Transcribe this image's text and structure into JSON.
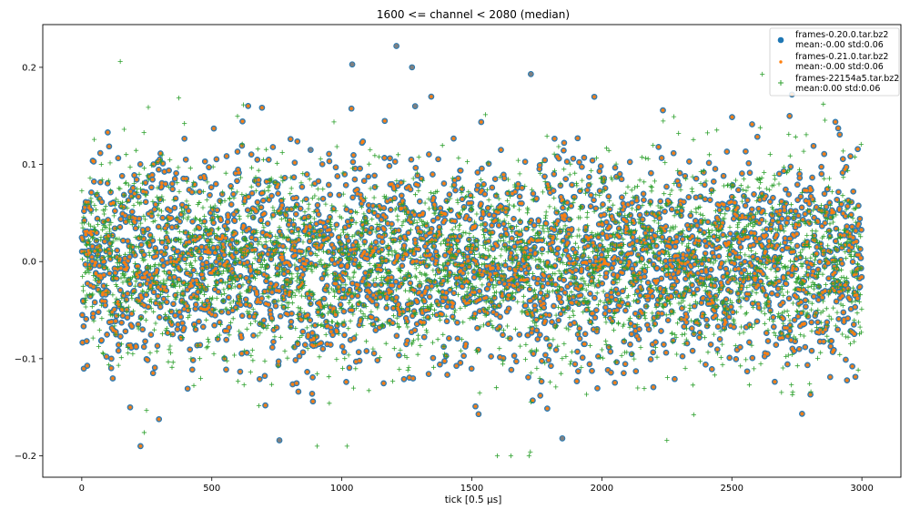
{
  "chart_data": {
    "type": "scatter",
    "title": "1600 <= channel < 2080 (median)",
    "xlabel": "tick [0.5 μs]",
    "ylabel": "",
    "xlim": [
      -150,
      3150
    ],
    "ylim": [
      -0.222,
      0.244
    ],
    "xticks": [
      0,
      500,
      1000,
      1500,
      2000,
      2500,
      3000
    ],
    "xtick_labels": [
      "0",
      "500",
      "1000",
      "1500",
      "2000",
      "2500",
      "3000"
    ],
    "yticks": [
      -0.2,
      -0.1,
      0.0,
      0.1,
      0.2
    ],
    "ytick_labels": [
      "−0.2",
      "−0.1",
      "0.0",
      "0.1",
      "0.2"
    ],
    "grid": false,
    "legend_position": "top-right",
    "n_points": 3000,
    "series": [
      {
        "name": "frames-0.20.0.tar.bz2",
        "stats": "mean:-0.00 std:0.06",
        "marker": "circle",
        "color": "#1f77b4",
        "mean": -0.0,
        "std": 0.06,
        "sample_points": [
          [
            1210,
            0.222
          ],
          [
            1270,
            0.2
          ],
          [
            1040,
            0.203
          ],
          [
            1727,
            0.193
          ],
          [
            1848,
            -0.182
          ],
          [
            1282,
            0.16
          ],
          [
            760,
            -0.184
          ],
          [
            880,
            0.115
          ]
        ]
      },
      {
        "name": "frames-0.21.0.tar.bz2",
        "stats": "mean:-0.00 std:0.06",
        "marker": "point",
        "color": "#ff7f0e",
        "mean": -0.0,
        "std": 0.06,
        "sample_points": [
          [
            1210,
            0.222
          ],
          [
            1270,
            0.2
          ],
          [
            1040,
            0.203
          ],
          [
            1727,
            0.193
          ],
          [
            1848,
            -0.182
          ],
          [
            1282,
            0.16
          ],
          [
            760,
            -0.184
          ],
          [
            880,
            0.115
          ]
        ]
      },
      {
        "name": "frames-22154a5.tar.bz2",
        "stats": "mean:0.00 std:0.06",
        "marker": "plus",
        "color": "#2ca02c",
        "mean": 0.0,
        "std": 0.06,
        "sample_points": [
          [
            148,
            0.206
          ],
          [
            1720,
            -0.2
          ],
          [
            1725,
            -0.196
          ],
          [
            905,
            -0.19
          ],
          [
            1020,
            -0.19
          ],
          [
            2250,
            -0.184
          ],
          [
            240,
            -0.176
          ]
        ]
      }
    ]
  }
}
